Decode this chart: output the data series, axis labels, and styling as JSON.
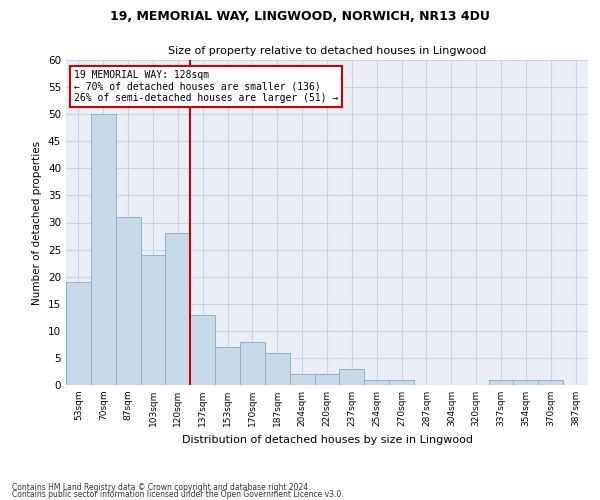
{
  "title1": "19, MEMORIAL WAY, LINGWOOD, NORWICH, NR13 4DU",
  "title2": "Size of property relative to detached houses in Lingwood",
  "xlabel": "Distribution of detached houses by size in Lingwood",
  "ylabel": "Number of detached properties",
  "bin_labels": [
    "53sqm",
    "70sqm",
    "87sqm",
    "103sqm",
    "120sqm",
    "137sqm",
    "153sqm",
    "170sqm",
    "187sqm",
    "204sqm",
    "220sqm",
    "237sqm",
    "254sqm",
    "270sqm",
    "287sqm",
    "304sqm",
    "320sqm",
    "337sqm",
    "354sqm",
    "370sqm",
    "387sqm"
  ],
  "bar_values": [
    19,
    50,
    31,
    24,
    28,
    13,
    7,
    8,
    6,
    2,
    2,
    3,
    1,
    1,
    0,
    0,
    0,
    1,
    1,
    1,
    0
  ],
  "bar_color": "#c8d9e8",
  "bar_edge_color": "#8ab4cc",
  "property_line_label": "19 MEMORIAL WAY: 128sqm",
  "annotation_line1": "← 70% of detached houses are smaller (136)",
  "annotation_line2": "26% of semi-detached houses are larger (51) →",
  "annotation_box_color": "#cc0000",
  "vline_color": "#cc0000",
  "ylim": [
    0,
    60
  ],
  "yticks": [
    0,
    5,
    10,
    15,
    20,
    25,
    30,
    35,
    40,
    45,
    50,
    55,
    60
  ],
  "grid_color": "#c8d4e4",
  "background_color": "#eaeff7",
  "footnote1": "Contains HM Land Registry data © Crown copyright and database right 2024.",
  "footnote2": "Contains public sector information licensed under the Open Government Licence v3.0."
}
